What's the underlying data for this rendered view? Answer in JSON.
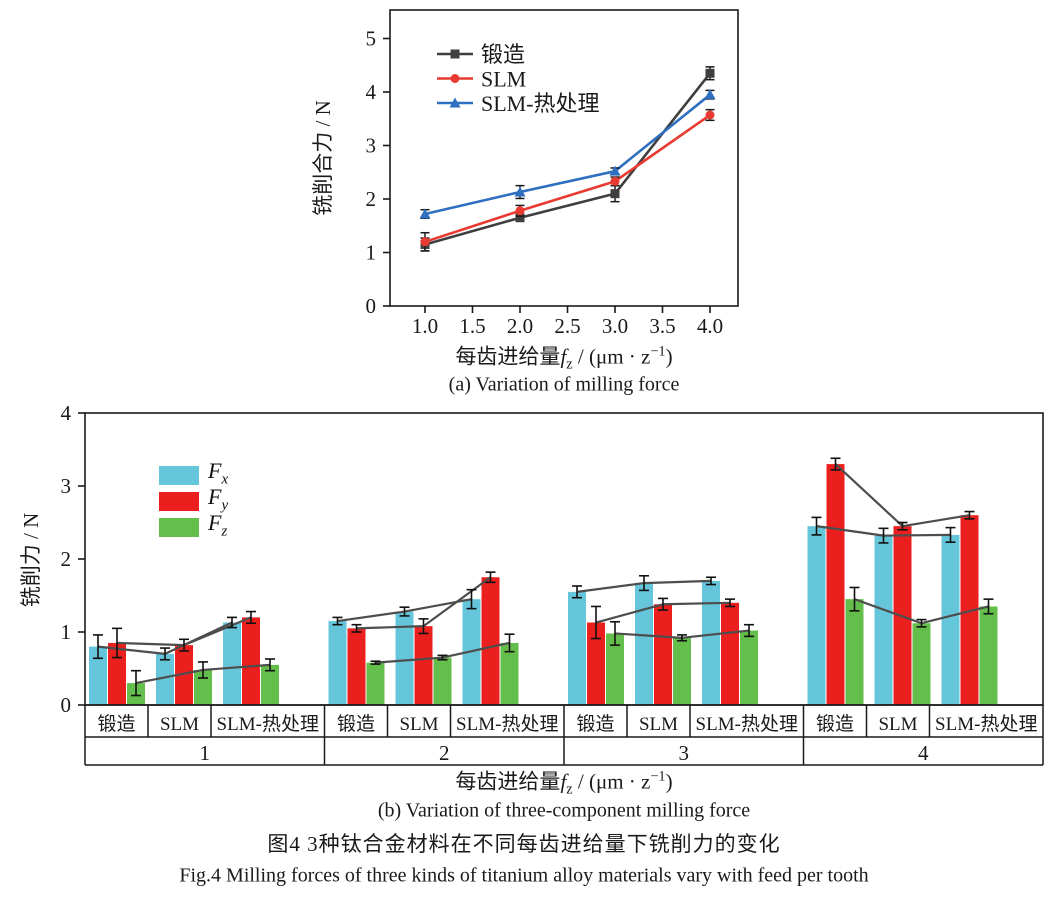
{
  "figure": {
    "caption_zh": "图4  3种钛合金材料在不同每齿进给量下铣削力的变化",
    "caption_en": "Fig.4  Milling forces of three kinds of titanium alloy materials vary with feed per tooth"
  },
  "xlabel_parts": {
    "pre": "每齿进给量",
    "sym": "f",
    "sub": "z",
    "mid": " / (μm · z",
    "sup": "−1",
    "post": ")"
  },
  "chart_data": [
    {
      "id": "a",
      "type": "line",
      "caption": "(a) Variation of milling force",
      "ylabel": "铣削合力 / N",
      "xlabel_text": "每齿进给量fz / (μm·z−1)",
      "xlim": [
        0.63,
        4.3
      ],
      "ylim": [
        0,
        5.53
      ],
      "x": [
        1.0,
        2.0,
        3.0,
        4.0
      ],
      "xticks": [
        1.0,
        1.5,
        2.0,
        2.5,
        3.0,
        3.5,
        4.0
      ],
      "xtick_labels": [
        "1.0",
        "1.5",
        "2.0",
        "2.5",
        "3.0",
        "3.5",
        "4.0"
      ],
      "yticks": [
        0,
        1,
        2,
        3,
        4,
        5
      ],
      "legend_position": "upper-left-inside",
      "grid": false,
      "series": [
        {
          "name": "锻造",
          "marker": "square",
          "color": "#3f3f3f",
          "values": [
            1.15,
            1.65,
            2.1,
            4.35
          ],
          "errors": [
            0.12,
            0.06,
            0.15,
            0.12
          ]
        },
        {
          "name": "SLM",
          "marker": "circle",
          "color": "#e83a30",
          "values": [
            1.2,
            1.78,
            2.33,
            3.57
          ],
          "errors": [
            0.17,
            0.1,
            0.08,
            0.1
          ]
        },
        {
          "name": "SLM-热处理",
          "marker": "triangle",
          "color": "#2f6fc0",
          "values": [
            1.72,
            2.13,
            2.52,
            3.95
          ],
          "errors": [
            0.08,
            0.12,
            0.06,
            0.08
          ]
        }
      ]
    },
    {
      "id": "b",
      "type": "bar",
      "caption": "(b) Variation of three-component milling force",
      "ylabel": "铣削力 / N",
      "xlabel_text": "每齿进给量fz / (μm·z−1)",
      "ylim": [
        0,
        4
      ],
      "yticks": [
        0,
        1,
        2,
        3,
        4
      ],
      "grid": false,
      "group_labels": [
        "1",
        "2",
        "3",
        "4"
      ],
      "material_labels": [
        "锻造",
        "SLM",
        "SLM-热处理"
      ],
      "legend": [
        {
          "sym": "F",
          "sub": "x",
          "color": "#65c5da"
        },
        {
          "sym": "F",
          "sub": "y",
          "color": "#ec1f1f"
        },
        {
          "sym": "F",
          "sub": "z",
          "color": "#64be4b"
        }
      ],
      "connector_color": "#4d4d4d",
      "series": [
        {
          "name": "Fx",
          "color": "#65c5da",
          "values": [
            [
              0.8,
              0.7,
              1.13
            ],
            [
              1.15,
              1.28,
              1.45
            ],
            [
              1.55,
              1.67,
              1.7
            ],
            [
              2.45,
              2.32,
              2.33
            ]
          ],
          "errors": [
            [
              0.16,
              0.08,
              0.07
            ],
            [
              0.05,
              0.06,
              0.13
            ],
            [
              0.08,
              0.1,
              0.05
            ],
            [
              0.12,
              0.1,
              0.1
            ]
          ]
        },
        {
          "name": "Fy",
          "color": "#ec1f1f",
          "values": [
            [
              0.85,
              0.82,
              1.2
            ],
            [
              1.05,
              1.08,
              1.75
            ],
            [
              1.13,
              1.38,
              1.4
            ],
            [
              3.3,
              2.45,
              2.6
            ]
          ],
          "errors": [
            [
              0.2,
              0.08,
              0.08
            ],
            [
              0.05,
              0.1,
              0.07
            ],
            [
              0.22,
              0.08,
              0.05
            ],
            [
              0.08,
              0.05,
              0.05
            ]
          ]
        },
        {
          "name": "Fz",
          "color": "#64be4b",
          "values": [
            [
              0.3,
              0.48,
              0.55
            ],
            [
              0.58,
              0.65,
              0.85
            ],
            [
              0.98,
              0.92,
              1.02
            ],
            [
              1.45,
              1.12,
              1.35
            ]
          ],
          "errors": [
            [
              0.17,
              0.11,
              0.08
            ],
            [
              0.02,
              0.03,
              0.12
            ],
            [
              0.16,
              0.04,
              0.08
            ],
            [
              0.16,
              0.05,
              0.1
            ]
          ]
        }
      ]
    }
  ]
}
